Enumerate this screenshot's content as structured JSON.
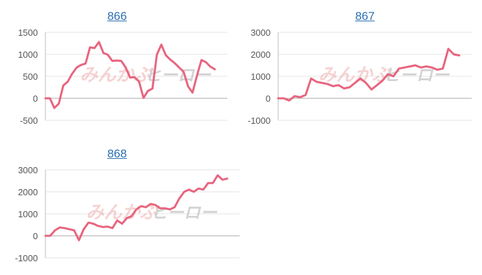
{
  "colors": {
    "line": "#e8647e",
    "grid": "#e6e6e6",
    "axis": "#bdbdbd",
    "title": "#2a6fb3",
    "tick": "#555555"
  },
  "watermark": {
    "text_left": "みんかぶ",
    "text_right": "ヒーロー"
  },
  "chart_data": [
    {
      "type": "line",
      "title": "866",
      "xlabel": "",
      "ylabel": "",
      "grid": true,
      "ylim": [
        -500,
        1500
      ],
      "yticks": [
        "1500",
        "1000",
        "500",
        "0",
        "-500"
      ],
      "ytick_values": [
        1500,
        1000,
        500,
        0,
        -500
      ],
      "series": [
        {
          "values": [
            0,
            0,
            -220,
            -120,
            290,
            380,
            560,
            700,
            760,
            790,
            1160,
            1140,
            1280,
            1030,
            990,
            850,
            860,
            850,
            700,
            470,
            480,
            380,
            10,
            170,
            220,
            990,
            1220,
            980,
            880,
            800,
            700,
            600,
            270,
            130,
            520,
            870,
            820,
            720,
            660
          ]
        }
      ]
    },
    {
      "type": "line",
      "title": "867",
      "xlabel": "",
      "ylabel": "",
      "grid": true,
      "ylim": [
        -1000,
        3000
      ],
      "yticks": [
        "3000",
        "2000",
        "1000",
        "0",
        "-1000"
      ],
      "ytick_values": [
        3000,
        2000,
        1000,
        0,
        -1000
      ],
      "series": [
        {
          "values": [
            0,
            0,
            -100,
            100,
            50,
            150,
            900,
            750,
            700,
            650,
            550,
            600,
            450,
            500,
            700,
            900,
            700,
            400,
            600,
            800,
            1100,
            1000,
            1350,
            1400,
            1450,
            1500,
            1400,
            1450,
            1400,
            1300,
            1350,
            2250,
            2000,
            1950
          ]
        }
      ]
    },
    {
      "type": "line",
      "title": "868",
      "xlabel": "",
      "ylabel": "",
      "grid": true,
      "ylim": [
        -1000,
        3000
      ],
      "yticks": [
        "3000",
        "2000",
        "1000",
        "0",
        "-1000"
      ],
      "ytick_values": [
        3000,
        2000,
        1000,
        0,
        -1000
      ],
      "series": [
        {
          "values": [
            0,
            0,
            250,
            380,
            350,
            300,
            250,
            -200,
            300,
            600,
            550,
            450,
            400,
            420,
            350,
            700,
            550,
            800,
            900,
            1200,
            1350,
            1300,
            1450,
            1400,
            1250,
            1250,
            1200,
            1300,
            1700,
            2000,
            2100,
            2000,
            2150,
            2100,
            2400,
            2400,
            2750,
            2550,
            2600
          ]
        }
      ]
    }
  ]
}
